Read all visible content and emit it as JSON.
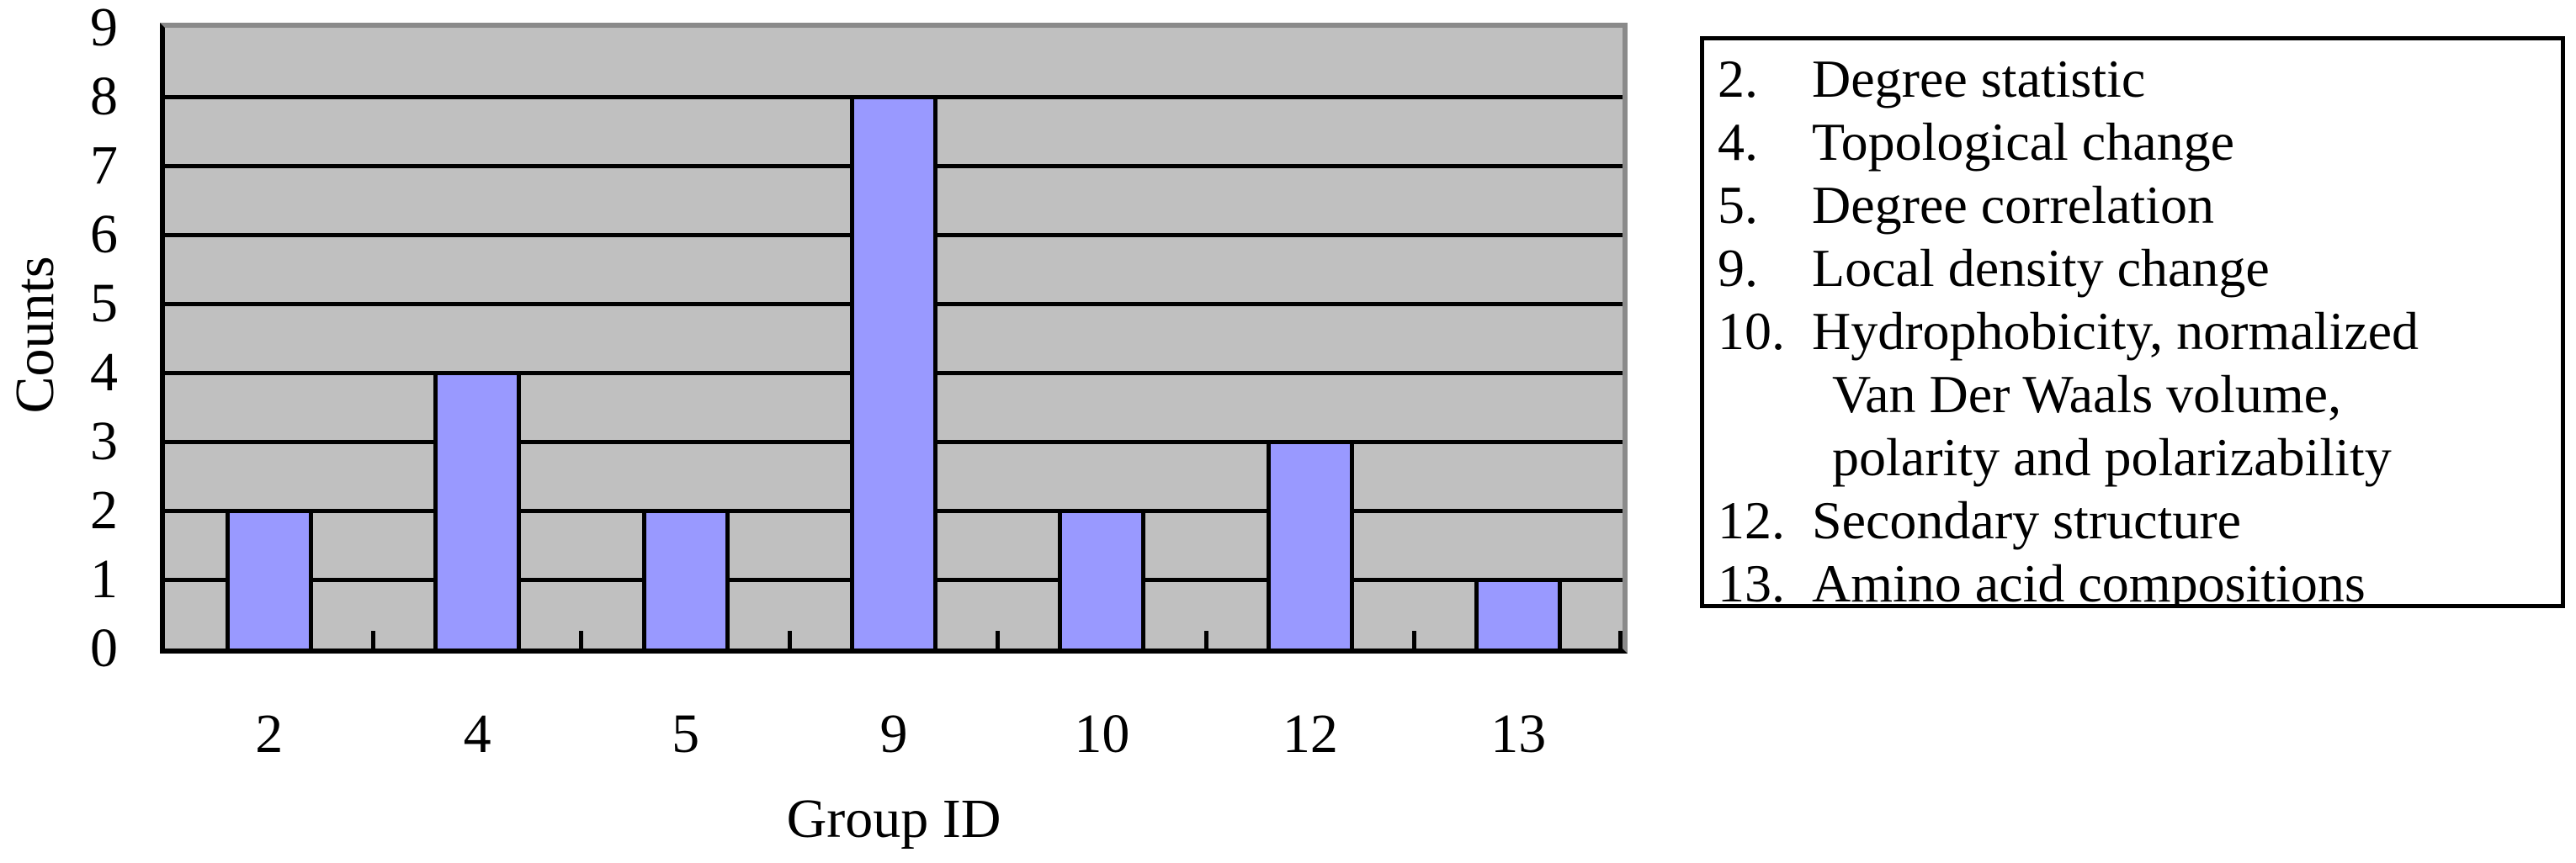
{
  "chart_data": {
    "type": "bar",
    "title": "",
    "categories": [
      "2",
      "4",
      "5",
      "9",
      "10",
      "12",
      "13"
    ],
    "values": [
      2,
      4,
      2,
      8,
      2,
      3,
      1
    ],
    "xlabel": "Group ID",
    "ylabel": "Counts",
    "ylim": [
      0,
      9
    ],
    "yticks": [
      0,
      1,
      2,
      3,
      4,
      5,
      6,
      7,
      8,
      9
    ],
    "grid": "horizontal black gridlines at every integer, gray plot background",
    "legend_position": "right of chart",
    "colors": {
      "bar_fill": "#9999ff",
      "bar_border": "#000000",
      "plot_background": "#c0c0c0",
      "gridline": "#000000",
      "axis_line": "#000000",
      "plot_top_right_border": "#8a8a8a",
      "legend_border": "#000000",
      "legend_background": "#ffffff",
      "page_background": "#ffffff",
      "text": "#000000"
    }
  },
  "legend": {
    "items": [
      {
        "num": "2.",
        "lines": [
          "Degree statistic"
        ]
      },
      {
        "num": "4.",
        "lines": [
          "Topological change"
        ]
      },
      {
        "num": "5.",
        "lines": [
          "Degree correlation"
        ]
      },
      {
        "num": "9.",
        "lines": [
          "Local density change"
        ]
      },
      {
        "num": "10.",
        "lines": [
          "Hydrophobicity, normalized",
          "Van Der Waals volume,",
          "polarity and polarizability"
        ]
      },
      {
        "num": "12.",
        "lines": [
          "Secondary structure"
        ]
      },
      {
        "num": "13.",
        "lines": [
          "Amino acid compositions"
        ]
      }
    ]
  }
}
